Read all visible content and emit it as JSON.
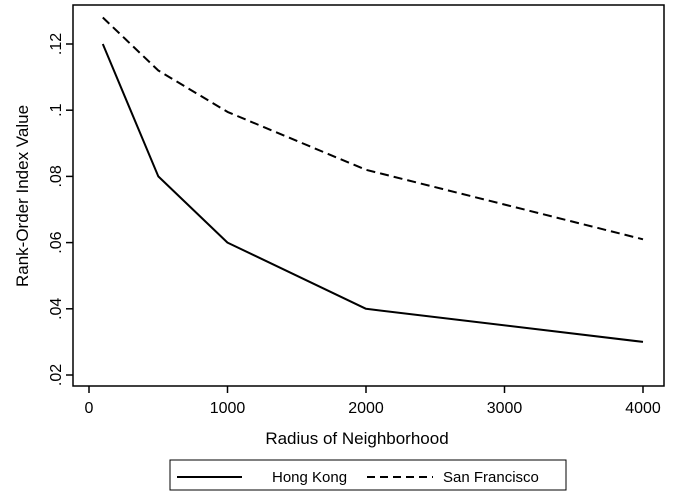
{
  "chart_data": {
    "type": "line",
    "title": "",
    "xlabel": "Radius of Neighborhood",
    "ylabel": "Rank-Order Index Value",
    "xlim": [
      0,
      4000
    ],
    "ylim": [
      0.02,
      0.12
    ],
    "x_ticks": [
      0,
      1000,
      2000,
      3000,
      4000
    ],
    "x_tick_labels": [
      "0",
      "1000",
      "2000",
      "3000",
      "4000"
    ],
    "y_ticks": [
      0.02,
      0.04,
      0.06,
      0.08,
      0.1,
      0.12
    ],
    "y_tick_labels": [
      ".02",
      ".04",
      ".06",
      ".08",
      ".1",
      ".12"
    ],
    "grid": false,
    "legend_position": "bottom",
    "series": [
      {
        "name": "Hong Kong",
        "style": "solid",
        "color": "#000000",
        "x": [
          100,
          500,
          1000,
          2000,
          4000
        ],
        "y": [
          0.12,
          0.08,
          0.06,
          0.04,
          0.03
        ]
      },
      {
        "name": "San Francisco",
        "style": "dashed",
        "color": "#000000",
        "x": [
          100,
          500,
          1000,
          2000,
          4000
        ],
        "y": [
          0.128,
          0.112,
          0.0995,
          0.082,
          0.061
        ]
      }
    ]
  }
}
